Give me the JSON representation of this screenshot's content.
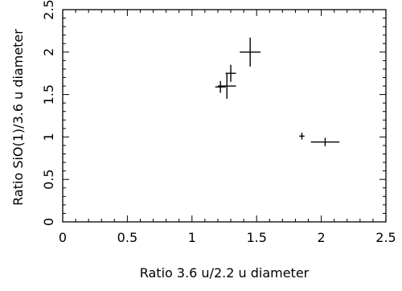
{
  "chart_data": {
    "type": "scatter",
    "title": "",
    "xlabel": "Ratio 3.6 u/2.2 u diameter",
    "ylabel": "Ratio SiO(1)/3.6 u diameter",
    "xlim": [
      0,
      2.5
    ],
    "ylim": [
      0,
      2.5
    ],
    "x_ticks": [
      "0",
      "0.5",
      "1",
      "1.5",
      "2",
      "2.5"
    ],
    "y_ticks": [
      "0",
      "0.5",
      "1",
      "1.5",
      "2",
      "2.5"
    ],
    "grid": false,
    "error_bars": true,
    "points": [
      {
        "x": 1.22,
        "y": 1.59,
        "xerr": 0.04,
        "yerr": 0.07
      },
      {
        "x": 1.27,
        "y": 1.6,
        "xerr": 0.07,
        "yerr": 0.15
      },
      {
        "x": 1.3,
        "y": 1.75,
        "xerr": 0.04,
        "yerr": 0.1
      },
      {
        "x": 1.45,
        "y": 2.0,
        "xerr": 0.08,
        "yerr": 0.17
      },
      {
        "x": 1.85,
        "y": 1.01,
        "xerr": 0.02,
        "yerr": 0.04
      },
      {
        "x": 2.03,
        "y": 0.94,
        "xerr": 0.11,
        "yerr": 0.05
      }
    ]
  }
}
